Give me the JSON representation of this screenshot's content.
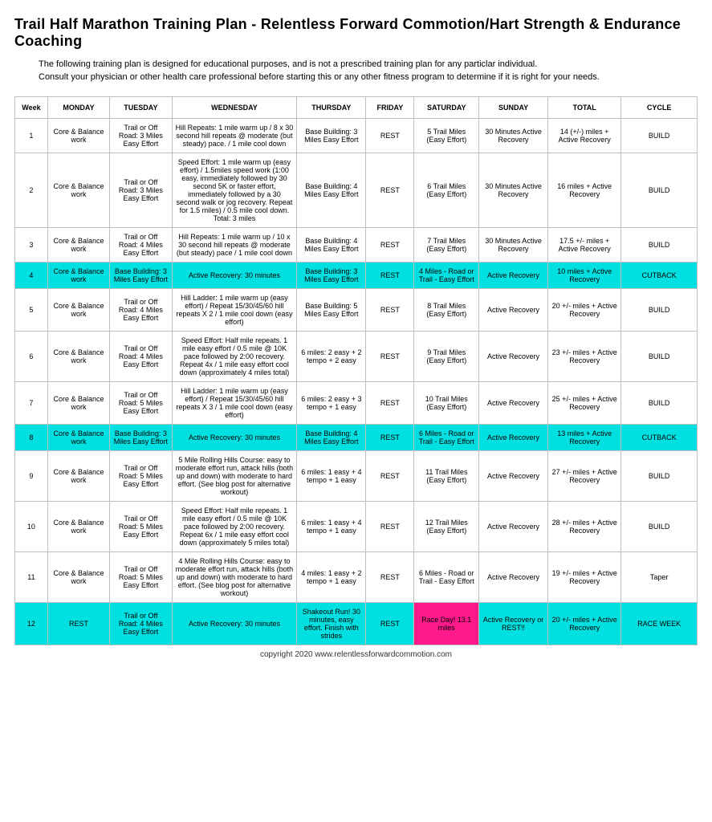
{
  "title": "Trail Half Marathon Training Plan - Relentless Forward Commotion/Hart Strength & Endurance Coaching",
  "intro1": "The following training plan is designed for educational purposes, and is not a prescribed training plan for any particlar individual.",
  "intro2": "Consult your physician or other health care professional before starting this or any other fitness program to determine if it is right for your needs.",
  "footer": "copyright 2020  www.relentlessforwardcommotion.com",
  "headers": [
    "Week",
    "MONDAY",
    "TUESDAY",
    "WEDNESDAY",
    "THURSDAY",
    "FRIDAY",
    "SATURDAY",
    "SUNDAY",
    "TOTAL",
    "CYCLE"
  ],
  "colors": {
    "cutback_bg": "#00e0e0",
    "race_bg": "#ff1a8c",
    "border": "#bfbfbf"
  },
  "rows": [
    {
      "week": "1",
      "mon": "Core & Balance work",
      "tue": "Trail or Off Road: 3 Miles Easy Effort",
      "wed": "Hill Repeats:  1 mile warm up / 8 x 30 second hill repeats @ moderate (but steady) pace. / 1 mile cool down",
      "thu": "Base Building: 3 Miles Easy Effort",
      "fri": "REST",
      "sat": "5 Trail Miles (Easy Effort)",
      "sun": "30 Minutes Active Recovery",
      "tot": "14 (+/-) miles + Active Recovery",
      "cyc": "BUILD",
      "style": "normal"
    },
    {
      "week": "2",
      "mon": "Core & Balance work",
      "tue": "Trail or Off Road: 3 Miles Easy Effort",
      "wed": "Speed Effort: 1 mile warm up (easy effort) / 1.5miles speed work (1:00 easy, immediately followed by 30 second 5K or faster effort, immediately followed by a 30 second walk or jog recovery.  Repeat for 1.5 miles) / 0.5 mile cool down.  Total: 3 miles",
      "thu": "Base Building: 4 Miles Easy Effort",
      "fri": "REST",
      "sat": "6 Trail Miles (Easy Effort)",
      "sun": "30 Minutes Active Recovery",
      "tot": "16 miles + Active Recovery",
      "cyc": "BUILD",
      "style": "normal"
    },
    {
      "week": "3",
      "mon": "Core & Balance work",
      "tue": "Trail or Off Road: 4 Miles Easy Effort",
      "wed": "Hill Repeats:  1 mile warm up / 10 x 30 second hill repeats @ moderate (but steady) pace / 1 mile cool down",
      "thu": "Base Building: 4 Miles Easy Effort",
      "fri": "REST",
      "sat": "7 Trail Miles (Easy Effort)",
      "sun": "30 Minutes Active Recovery",
      "tot": "17.5 +/- miles + Active Recovery",
      "cyc": "BUILD",
      "style": "normal"
    },
    {
      "week": "4",
      "mon": "Core & Balance work",
      "tue": "Base Building: 3 Miles Easy Effort",
      "wed": "Active Recovery: 30 minutes",
      "thu": "Base Building: 3 Miles Easy Effort",
      "fri": "REST",
      "sat": "4 Miles - Road or Trail - Easy Effort",
      "sun": "Active Recovery",
      "tot": "10 miles + Active Recovery",
      "cyc": "CUTBACK",
      "style": "cutback"
    },
    {
      "week": "5",
      "mon": "Core & Balance work",
      "tue": "Trail or Off Road: 4 Miles Easy Effort",
      "wed": "Hill Ladder:  1 mile warm up (easy effort) / Repeat 15/30/45/60 hill repeats X 2 / 1 mile cool down (easy effort)",
      "thu": "Base Building: 5 Miles Easy Effort",
      "fri": "REST",
      "sat": "8  Trail Miles (Easy Effort)",
      "sun": "Active Recovery",
      "tot": "20 +/- miles + Active Recovery",
      "cyc": "BUILD",
      "style": "normal"
    },
    {
      "week": "6",
      "mon": "Core & Balance work",
      "tue": "Trail or Off Road: 4 Miles Easy Effort",
      "wed": "Speed Effort: Half mile repeats. 1 mile easy effort / 0.5 mile @ 10K pace followed by 2:00 recovery.  Repeat 4x / 1 mile easy effort cool down (approximately 4 miles total)",
      "thu": "6 miles: 2 easy + 2 tempo + 2 easy",
      "fri": "REST",
      "sat": "9  Trail Miles (Easy Effort)",
      "sun": "Active Recovery",
      "tot": "23 +/- miles + Active Recovery",
      "cyc": "BUILD",
      "style": "normal"
    },
    {
      "week": "7",
      "mon": "Core & Balance work",
      "tue": "Trail or Off Road: 5 Miles Easy Effort",
      "wed": "Hill Ladder:  1 mile warm up (easy effort) / Repeat 15/30/45/60 hill repeats X 3 / 1 mile cool down (easy effort)",
      "thu": "6 miles: 2 easy + 3 tempo + 1 easy",
      "fri": "REST",
      "sat": "10 Trail Miles (Easy Effort)",
      "sun": "Active Recovery",
      "tot": "25 +/- miles + Active Recovery",
      "cyc": "BUILD",
      "style": "normal"
    },
    {
      "week": "8",
      "mon": "Core & Balance work",
      "tue": "Base Building: 3 Miles Easy Effort",
      "wed": "Active Recovery: 30 minutes",
      "thu": "Base Building: 4 Miles Easy Effort",
      "fri": "REST",
      "sat": "6 Miles -  Road or Trail - Easy Effort",
      "sun": "Active Recovery",
      "tot": "13 miles + Active Recovery",
      "cyc": "CUTBACK",
      "style": "cutback"
    },
    {
      "week": "9",
      "mon": "Core & Balance work",
      "tue": "Trail or Off Road: 5 Miles Easy Effort",
      "wed": "5 Mile Rolling Hills Course: easy to moderate effort run, attack hills (both up and down) with moderate to hard effort.  (See blog post for alternative workout)",
      "thu": "6 miles: 1 easy + 4 tempo + 1 easy",
      "fri": "REST",
      "sat": "11 Trail Miles (Easy Effort)",
      "sun": "Active Recovery",
      "tot": "27 +/- miles + Active Recovery",
      "cyc": "BUILD",
      "style": "normal"
    },
    {
      "week": "10",
      "mon": "Core & Balance work",
      "tue": "Trail or Off Road: 5 Miles Easy Effort",
      "wed": "Speed Effort: Half mile repeats. 1 mile easy effort / 0.5 mile @ 10K pace followed by 2:00 recovery.  Repeat 6x / 1 mile easy effort cool down (approximately 5 miles total)",
      "thu": "6 miles: 1 easy + 4 tempo + 1 easy",
      "fri": "REST",
      "sat": "12  Trail Miles (Easy Effort)",
      "sun": "Active Recovery",
      "tot": "28 +/- miles + Active Recovery",
      "cyc": "BUILD",
      "style": "normal"
    },
    {
      "week": "11",
      "mon": "Core & Balance work",
      "tue": "Trail or Off Road: 5 Miles Easy Effort",
      "wed": "4 Mile Rolling Hills Course: easy to moderate effort run, attack hills (both up and down) with moderate to hard effort.  (See blog post for alternative workout)",
      "thu": "4 miles: 1 easy + 2 tempo + 1 easy",
      "fri": "REST",
      "sat": "6 Miles - Road or Trail - Easy Effort",
      "sun": "Active Recovery",
      "tot": "19 +/- miles + Active Recovery",
      "cyc": "Taper",
      "style": "normal"
    },
    {
      "week": "12",
      "mon": "REST",
      "tue": "Trail or Off Road: 4 Miles Easy Effort",
      "wed": "Active Recovery: 30 minutes",
      "thu": "Shakeout Run! 30 minutes, easy effort. Finish with strides",
      "fri": "REST",
      "sat": "Race Day!  13.1 miles",
      "sun": "Active Recovery or REST!!",
      "tot": "20 +/- miles + Active Recovery",
      "cyc": "RACE WEEK",
      "style": "raceweek"
    }
  ]
}
